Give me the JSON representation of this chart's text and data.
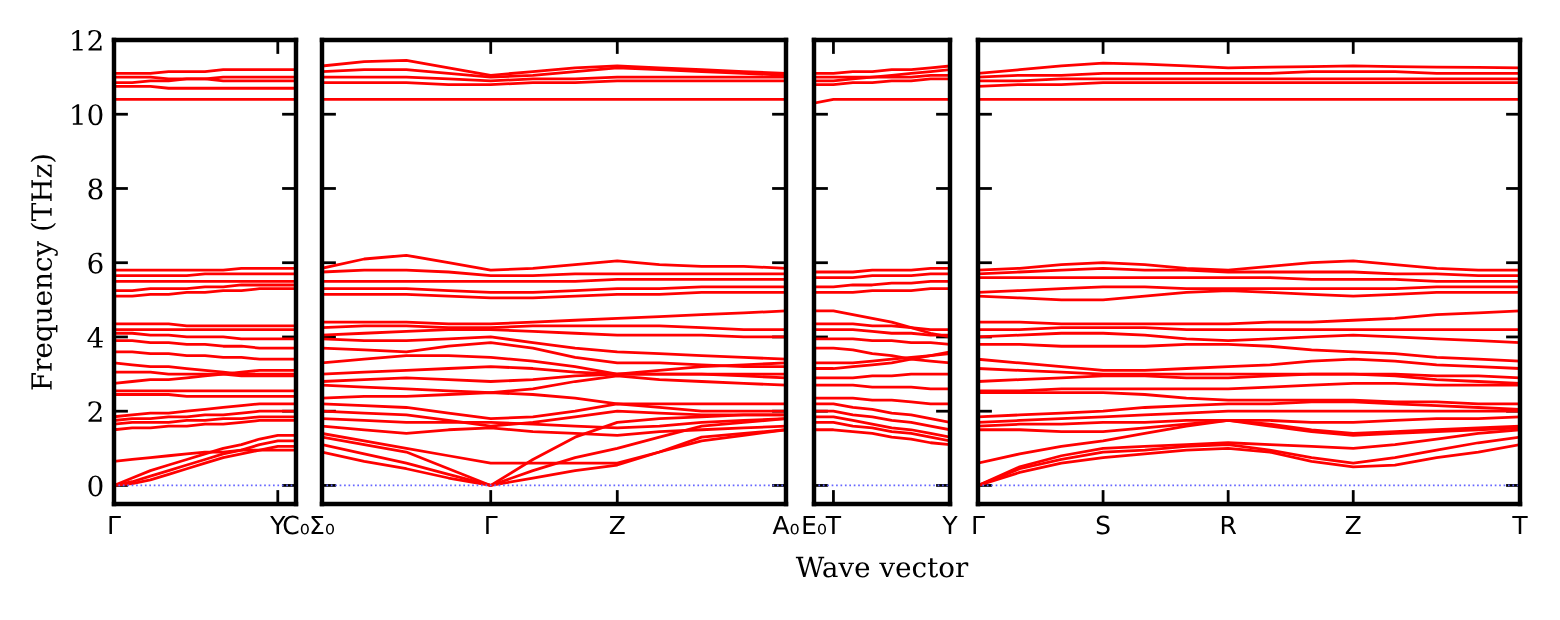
{
  "chart_data": [
    {
      "type": "line",
      "ylabel": "Frequency (THz)",
      "categories": [
        "Γ",
        null,
        null,
        null,
        null,
        null,
        null,
        null,
        null,
        "Y",
        "C₀"
      ],
      "ylim": [
        -0.5,
        12
      ],
      "yticks": [
        0,
        2,
        4,
        6,
        8,
        10,
        12
      ],
      "ref_lines": [
        {
          "axis": "y",
          "value": 0,
          "color": "#6666ff",
          "line_style": "dotted"
        }
      ],
      "series": [
        {
          "color": "#ff0000",
          "values": [
            10.4,
            10.4,
            10.4,
            10.4,
            10.4,
            10.4,
            10.4,
            10.4,
            10.4,
            10.4,
            10.4
          ]
        },
        {
          "color": "#ff0000",
          "values": [
            10.75,
            10.75,
            10.75,
            10.7,
            10.7,
            10.7,
            10.7,
            10.7,
            10.7,
            10.7,
            10.7
          ]
        },
        {
          "color": "#ff0000",
          "values": [
            10.85,
            10.85,
            10.9,
            10.9,
            10.95,
            10.95,
            11.0,
            11.0,
            11.0,
            11.0,
            11.0
          ]
        },
        {
          "color": "#ff0000",
          "values": [
            11.0,
            11.0,
            11.0,
            10.95,
            10.95,
            10.95,
            10.9,
            10.9,
            10.9,
            10.9,
            10.9
          ]
        },
        {
          "color": "#ff0000",
          "values": [
            11.1,
            11.1,
            11.1,
            11.15,
            11.15,
            11.15,
            11.2,
            11.2,
            11.2,
            11.2,
            11.2
          ]
        },
        {
          "color": "#ff0000",
          "values": [
            5.1,
            5.1,
            5.15,
            5.15,
            5.2,
            5.2,
            5.25,
            5.25,
            5.3,
            5.3,
            5.3
          ]
        },
        {
          "color": "#ff0000",
          "values": [
            5.25,
            5.25,
            5.3,
            5.3,
            5.3,
            5.35,
            5.35,
            5.4,
            5.4,
            5.4,
            5.4
          ]
        },
        {
          "color": "#ff0000",
          "values": [
            5.5,
            5.5,
            5.5,
            5.5,
            5.5,
            5.5,
            5.5,
            5.5,
            5.5,
            5.5,
            5.5
          ]
        },
        {
          "color": "#ff0000",
          "values": [
            5.65,
            5.65,
            5.65,
            5.65,
            5.65,
            5.7,
            5.7,
            5.7,
            5.7,
            5.7,
            5.7
          ]
        },
        {
          "color": "#ff0000",
          "values": [
            5.8,
            5.8,
            5.8,
            5.8,
            5.8,
            5.8,
            5.8,
            5.85,
            5.85,
            5.85,
            5.85
          ]
        },
        {
          "color": "#ff0000",
          "values": [
            4.35,
            4.35,
            4.35,
            4.35,
            4.3,
            4.3,
            4.3,
            4.3,
            4.3,
            4.3,
            4.3
          ]
        },
        {
          "color": "#ff0000",
          "values": [
            4.2,
            4.2,
            4.2,
            4.2,
            4.2,
            4.2,
            4.2,
            4.2,
            4.2,
            4.2,
            4.2
          ]
        },
        {
          "color": "#ff0000",
          "values": [
            4.1,
            4.1,
            4.05,
            4.05,
            4.0,
            4.0,
            4.0,
            3.95,
            3.95,
            3.95,
            3.95
          ]
        },
        {
          "color": "#ff0000",
          "values": [
            3.9,
            3.9,
            3.85,
            3.85,
            3.8,
            3.8,
            3.75,
            3.75,
            3.7,
            3.7,
            3.7
          ]
        },
        {
          "color": "#ff0000",
          "values": [
            3.6,
            3.6,
            3.55,
            3.55,
            3.5,
            3.5,
            3.45,
            3.45,
            3.4,
            3.4,
            3.4
          ]
        },
        {
          "color": "#ff0000",
          "values": [
            3.3,
            3.25,
            3.2,
            3.2,
            3.15,
            3.1,
            3.05,
            3.0,
            3.0,
            3.0,
            3.0
          ]
        },
        {
          "color": "#ff0000",
          "values": [
            3.05,
            3.05,
            3.05,
            3.0,
            3.0,
            3.0,
            3.0,
            2.95,
            2.95,
            2.95,
            2.95
          ]
        },
        {
          "color": "#ff0000",
          "values": [
            2.75,
            2.8,
            2.85,
            2.85,
            2.9,
            2.95,
            3.0,
            3.05,
            3.1,
            3.1,
            3.1
          ]
        },
        {
          "color": "#ff0000",
          "values": [
            2.55,
            2.55,
            2.55,
            2.55,
            2.55,
            2.55,
            2.55,
            2.55,
            2.55,
            2.55,
            2.55
          ]
        },
        {
          "color": "#ff0000",
          "values": [
            2.45,
            2.45,
            2.45,
            2.45,
            2.4,
            2.4,
            2.4,
            2.4,
            2.4,
            2.4,
            2.4
          ]
        },
        {
          "color": "#ff0000",
          "values": [
            1.85,
            1.9,
            1.95,
            1.95,
            2.0,
            2.05,
            2.1,
            2.15,
            2.2,
            2.2,
            2.2
          ]
        },
        {
          "color": "#ff0000",
          "values": [
            1.75,
            1.8,
            1.8,
            1.85,
            1.85,
            1.9,
            1.9,
            1.95,
            2.0,
            2.0,
            2.0
          ]
        },
        {
          "color": "#ff0000",
          "values": [
            1.65,
            1.7,
            1.7,
            1.7,
            1.75,
            1.75,
            1.8,
            1.8,
            1.85,
            1.85,
            1.85
          ]
        },
        {
          "color": "#ff0000",
          "values": [
            1.5,
            1.55,
            1.55,
            1.6,
            1.6,
            1.65,
            1.65,
            1.7,
            1.75,
            1.75,
            1.75
          ]
        },
        {
          "color": "#ff0000",
          "values": [
            0.65,
            0.7,
            0.75,
            0.8,
            0.85,
            0.9,
            0.9,
            0.95,
            0.95,
            0.95,
            0.95
          ]
        },
        {
          "color": "#ff0000",
          "values": [
            0,
            0.05,
            0.15,
            0.3,
            0.45,
            0.6,
            0.75,
            0.85,
            0.95,
            1.05,
            1.05
          ]
        },
        {
          "color": "#ff0000",
          "values": [
            0,
            0.1,
            0.25,
            0.4,
            0.55,
            0.7,
            0.85,
            0.95,
            1.1,
            1.2,
            1.2
          ]
        },
        {
          "color": "#ff0000",
          "values": [
            0,
            0.2,
            0.4,
            0.55,
            0.7,
            0.85,
            1.0,
            1.1,
            1.25,
            1.35,
            1.35
          ]
        }
      ]
    },
    {
      "type": "line",
      "categories": [
        "Σ₀",
        null,
        null,
        null,
        "Γ",
        null,
        null,
        "Z",
        null,
        null,
        null,
        "A₀"
      ],
      "ylim": [
        -0.5,
        12
      ],
      "yticks": [
        0,
        2,
        4,
        6,
        8,
        10,
        12
      ],
      "tick_labels": "x",
      "ref_lines": [
        {
          "axis": "y",
          "value": 0,
          "color": "#6666ff",
          "line_style": "dotted"
        }
      ],
      "series": [
        {
          "color": "#ff0000",
          "values": [
            11.3,
            11.42,
            11.45,
            11.25,
            11.05,
            11.15,
            11.25,
            11.3,
            11.25,
            11.2,
            11.15,
            11.1
          ]
        },
        {
          "color": "#ff0000",
          "values": [
            11.15,
            11.2,
            11.2,
            11.1,
            11.0,
            11.05,
            11.15,
            11.25,
            11.2,
            11.15,
            11.1,
            11.05
          ]
        },
        {
          "color": "#ff0000",
          "values": [
            11.0,
            11.0,
            11.0,
            10.95,
            10.9,
            10.95,
            10.95,
            11.0,
            11.0,
            11.0,
            11.0,
            11.0
          ]
        },
        {
          "color": "#ff0000",
          "values": [
            10.85,
            10.85,
            10.85,
            10.8,
            10.8,
            10.85,
            10.85,
            10.9,
            10.9,
            10.9,
            10.9,
            10.9
          ]
        },
        {
          "color": "#ff0000",
          "values": [
            10.4,
            10.4,
            10.4,
            10.4,
            10.4,
            10.4,
            10.4,
            10.4,
            10.4,
            10.4,
            10.4,
            10.4
          ]
        },
        {
          "color": "#ff0000",
          "values": [
            5.85,
            6.1,
            6.2,
            6.0,
            5.8,
            5.85,
            5.95,
            6.05,
            5.95,
            5.9,
            5.9,
            5.85
          ]
        },
        {
          "color": "#ff0000",
          "values": [
            5.75,
            5.8,
            5.8,
            5.75,
            5.65,
            5.65,
            5.7,
            5.7,
            5.7,
            5.7,
            5.7,
            5.7
          ]
        },
        {
          "color": "#ff0000",
          "values": [
            5.5,
            5.5,
            5.5,
            5.5,
            5.5,
            5.5,
            5.5,
            5.55,
            5.55,
            5.55,
            5.55,
            5.55
          ]
        },
        {
          "color": "#ff0000",
          "values": [
            5.3,
            5.3,
            5.3,
            5.25,
            5.2,
            5.2,
            5.25,
            5.3,
            5.3,
            5.35,
            5.35,
            5.35
          ]
        },
        {
          "color": "#ff0000",
          "values": [
            5.15,
            5.15,
            5.15,
            5.1,
            5.05,
            5.05,
            5.1,
            5.15,
            5.15,
            5.2,
            5.2,
            5.2
          ]
        },
        {
          "color": "#ff0000",
          "values": [
            4.4,
            4.4,
            4.4,
            4.35,
            4.35,
            4.4,
            4.45,
            4.5,
            4.55,
            4.6,
            4.65,
            4.7
          ]
        },
        {
          "color": "#ff0000",
          "values": [
            4.25,
            4.3,
            4.3,
            4.25,
            4.25,
            4.3,
            4.3,
            4.3,
            4.3,
            4.25,
            4.2,
            4.2
          ]
        },
        {
          "color": "#ff0000",
          "values": [
            4.05,
            4.1,
            4.15,
            4.2,
            4.2,
            4.15,
            4.1,
            4.05,
            4.05,
            4.05,
            4.0,
            4.0
          ]
        },
        {
          "color": "#ff0000",
          "values": [
            3.95,
            3.9,
            3.9,
            3.95,
            4.0,
            3.85,
            3.7,
            3.6,
            3.55,
            3.5,
            3.45,
            3.4
          ]
        },
        {
          "color": "#ff0000",
          "values": [
            3.7,
            3.65,
            3.6,
            3.75,
            3.85,
            3.7,
            3.45,
            3.3,
            3.3,
            3.25,
            3.2,
            3.2
          ]
        },
        {
          "color": "#ff0000",
          "values": [
            3.3,
            3.4,
            3.5,
            3.5,
            3.45,
            3.35,
            3.2,
            3.0,
            3.0,
            3.0,
            2.95,
            2.9
          ]
        },
        {
          "color": "#ff0000",
          "values": [
            3.0,
            3.05,
            3.1,
            3.15,
            3.2,
            3.15,
            3.05,
            3.0,
            3.0,
            3.0,
            3.0,
            3.0
          ]
        },
        {
          "color": "#ff0000",
          "values": [
            2.8,
            2.85,
            2.9,
            2.85,
            2.8,
            2.85,
            2.95,
            3.0,
            3.1,
            3.2,
            3.25,
            3.3
          ]
        },
        {
          "color": "#ff0000",
          "values": [
            2.7,
            2.65,
            2.6,
            2.55,
            2.5,
            2.6,
            2.8,
            2.95,
            2.85,
            2.8,
            2.75,
            2.7
          ]
        },
        {
          "color": "#ff0000",
          "values": [
            2.35,
            2.4,
            2.4,
            2.45,
            2.5,
            2.45,
            2.35,
            2.2,
            2.2,
            2.2,
            2.2,
            2.2
          ]
        },
        {
          "color": "#ff0000",
          "values": [
            2.2,
            2.15,
            2.1,
            1.95,
            1.8,
            1.85,
            2.0,
            2.2,
            2.1,
            2.0,
            2.0,
            2.0
          ]
        },
        {
          "color": "#ff0000",
          "values": [
            2.0,
            1.95,
            1.9,
            1.75,
            1.6,
            1.7,
            1.85,
            2.0,
            1.95,
            1.9,
            1.9,
            1.9
          ]
        },
        {
          "color": "#ff0000",
          "values": [
            1.8,
            1.75,
            1.7,
            1.7,
            1.7,
            1.65,
            1.6,
            1.55,
            1.6,
            1.7,
            1.75,
            1.8
          ]
        },
        {
          "color": "#ff0000",
          "values": [
            1.6,
            1.5,
            1.4,
            1.5,
            1.55,
            1.45,
            1.4,
            1.35,
            1.45,
            1.5,
            1.55,
            1.6
          ]
        },
        {
          "color": "#ff0000",
          "values": [
            1.4,
            1.2,
            1.0,
            0.8,
            0.6,
            0.6,
            0.6,
            0.6,
            0.9,
            1.3,
            1.4,
            1.5
          ]
        },
        {
          "color": "#ff0000",
          "values": [
            1.3,
            1.1,
            0.9,
            0.45,
            0,
            0.7,
            1.3,
            1.7,
            1.8,
            1.85,
            1.9,
            1.9
          ]
        },
        {
          "color": "#ff0000",
          "values": [
            1.1,
            0.85,
            0.6,
            0.3,
            0,
            0.4,
            0.75,
            1.0,
            1.3,
            1.6,
            1.7,
            1.8
          ]
        },
        {
          "color": "#ff0000",
          "values": [
            0.9,
            0.65,
            0.45,
            0.2,
            0,
            0.2,
            0.4,
            0.55,
            0.9,
            1.2,
            1.35,
            1.5
          ]
        }
      ]
    },
    {
      "type": "line",
      "xlabel": "Wave vector",
      "categories": [
        "E₀",
        "T",
        null,
        null,
        null,
        null,
        null,
        "Y"
      ],
      "ylim": [
        -0.5,
        12
      ],
      "yticks": [
        0,
        2,
        4,
        6,
        8,
        10,
        12
      ],
      "tick_labels": "x",
      "ref_lines": [
        {
          "axis": "y",
          "value": 0,
          "color": "#6666ff",
          "line_style": "dotted"
        }
      ],
      "series": [
        {
          "color": "#ff0000",
          "values": [
            10.3,
            10.4,
            10.4,
            10.4,
            10.4,
            10.4,
            10.4,
            10.4
          ]
        },
        {
          "color": "#ff0000",
          "values": [
            10.9,
            10.9,
            10.95,
            11.0,
            11.05,
            11.1,
            11.15,
            11.2
          ]
        },
        {
          "color": "#ff0000",
          "values": [
            11.1,
            11.1,
            11.15,
            11.15,
            11.2,
            11.2,
            11.25,
            11.3
          ]
        },
        {
          "color": "#ff0000",
          "values": [
            11.0,
            11.0,
            11.0,
            11.0,
            11.0,
            11.0,
            11.05,
            11.05
          ]
        },
        {
          "color": "#ff0000",
          "values": [
            10.8,
            10.8,
            10.85,
            10.85,
            10.9,
            10.9,
            10.95,
            10.95
          ]
        },
        {
          "color": "#ff0000",
          "values": [
            5.2,
            5.2,
            5.2,
            5.25,
            5.25,
            5.25,
            5.3,
            5.3
          ]
        },
        {
          "color": "#ff0000",
          "values": [
            5.35,
            5.35,
            5.4,
            5.4,
            5.45,
            5.45,
            5.5,
            5.5
          ]
        },
        {
          "color": "#ff0000",
          "values": [
            5.6,
            5.6,
            5.6,
            5.65,
            5.65,
            5.65,
            5.7,
            5.7
          ]
        },
        {
          "color": "#ff0000",
          "values": [
            5.75,
            5.75,
            5.75,
            5.8,
            5.8,
            5.8,
            5.85,
            5.85
          ]
        },
        {
          "color": "#ff0000",
          "values": [
            4.7,
            4.7,
            4.6,
            4.5,
            4.4,
            4.25,
            4.1,
            4.0
          ]
        },
        {
          "color": "#ff0000",
          "values": [
            4.35,
            4.35,
            4.35,
            4.3,
            4.3,
            4.25,
            4.2,
            4.2
          ]
        },
        {
          "color": "#ff0000",
          "values": [
            4.2,
            4.2,
            4.2,
            4.15,
            4.1,
            4.1,
            4.05,
            4.05
          ]
        },
        {
          "color": "#ff0000",
          "values": [
            3.95,
            3.95,
            3.95,
            3.9,
            3.9,
            3.85,
            3.85,
            3.8
          ]
        },
        {
          "color": "#ff0000",
          "values": [
            3.7,
            3.7,
            3.65,
            3.55,
            3.5,
            3.4,
            3.35,
            3.3
          ]
        },
        {
          "color": "#ff0000",
          "values": [
            3.3,
            3.3,
            3.3,
            3.35,
            3.4,
            3.45,
            3.5,
            3.55
          ]
        },
        {
          "color": "#ff0000",
          "values": [
            3.15,
            3.15,
            3.2,
            3.25,
            3.3,
            3.4,
            3.5,
            3.6
          ]
        },
        {
          "color": "#ff0000",
          "values": [
            2.9,
            2.9,
            2.9,
            2.95,
            2.95,
            3.0,
            3.0,
            3.0
          ]
        },
        {
          "color": "#ff0000",
          "values": [
            2.7,
            2.7,
            2.7,
            2.65,
            2.65,
            2.65,
            2.6,
            2.6
          ]
        },
        {
          "color": "#ff0000",
          "values": [
            2.35,
            2.35,
            2.35,
            2.3,
            2.3,
            2.25,
            2.2,
            2.2
          ]
        },
        {
          "color": "#ff0000",
          "values": [
            2.2,
            2.2,
            2.1,
            2.05,
            1.95,
            1.9,
            1.8,
            1.7
          ]
        },
        {
          "color": "#ff0000",
          "values": [
            2.0,
            2.0,
            1.9,
            1.85,
            1.75,
            1.7,
            1.6,
            1.5
          ]
        },
        {
          "color": "#ff0000",
          "values": [
            1.85,
            1.85,
            1.75,
            1.65,
            1.55,
            1.5,
            1.4,
            1.3
          ]
        },
        {
          "color": "#ff0000",
          "values": [
            1.7,
            1.7,
            1.6,
            1.55,
            1.45,
            1.4,
            1.3,
            1.2
          ]
        },
        {
          "color": "#ff0000",
          "values": [
            1.5,
            1.5,
            1.45,
            1.4,
            1.3,
            1.25,
            1.15,
            1.1
          ]
        }
      ]
    },
    {
      "type": "line",
      "categories": [
        "Γ",
        null,
        null,
        "S",
        null,
        null,
        "R",
        null,
        null,
        "Z",
        null,
        null,
        null,
        "T"
      ],
      "ylim": [
        -0.5,
        12
      ],
      "yticks": [
        0,
        2,
        4,
        6,
        8,
        10,
        12
      ],
      "tick_labels": "x",
      "ref_lines": [
        {
          "axis": "y",
          "value": 0,
          "color": "#6666ff",
          "line_style": "dotted"
        }
      ],
      "series": [
        {
          "color": "#ff0000",
          "values": [
            11.1,
            11.2,
            11.3,
            11.38,
            11.35,
            11.3,
            11.25,
            11.27,
            11.28,
            11.3,
            11.28,
            11.27,
            11.26,
            11.25
          ]
        },
        {
          "color": "#ff0000",
          "values": [
            11.0,
            11.05,
            11.05,
            11.1,
            11.1,
            11.1,
            11.1,
            11.1,
            11.15,
            11.15,
            11.15,
            11.1,
            11.1,
            11.1
          ]
        },
        {
          "color": "#ff0000",
          "values": [
            10.9,
            10.9,
            10.95,
            10.95,
            10.95,
            10.95,
            10.95,
            10.95,
            10.95,
            10.95,
            10.95,
            10.95,
            10.95,
            10.95
          ]
        },
        {
          "color": "#ff0000",
          "values": [
            10.75,
            10.8,
            10.8,
            10.85,
            10.85,
            10.85,
            10.85,
            10.85,
            10.85,
            10.85,
            10.85,
            10.85,
            10.85,
            10.85
          ]
        },
        {
          "color": "#ff0000",
          "values": [
            10.4,
            10.4,
            10.4,
            10.4,
            10.4,
            10.4,
            10.4,
            10.4,
            10.4,
            10.4,
            10.4,
            10.4,
            10.4,
            10.4
          ]
        },
        {
          "color": "#ff0000",
          "values": [
            5.8,
            5.85,
            5.95,
            6.0,
            5.95,
            5.85,
            5.8,
            5.9,
            6.0,
            6.05,
            5.95,
            5.85,
            5.8,
            5.8
          ]
        },
        {
          "color": "#ff0000",
          "values": [
            5.7,
            5.75,
            5.8,
            5.85,
            5.8,
            5.8,
            5.75,
            5.75,
            5.75,
            5.75,
            5.7,
            5.7,
            5.65,
            5.65
          ]
        },
        {
          "color": "#ff0000",
          "values": [
            5.6,
            5.6,
            5.6,
            5.6,
            5.6,
            5.6,
            5.6,
            5.6,
            5.55,
            5.55,
            5.55,
            5.5,
            5.5,
            5.5
          ]
        },
        {
          "color": "#ff0000",
          "values": [
            5.2,
            5.25,
            5.3,
            5.35,
            5.35,
            5.3,
            5.3,
            5.3,
            5.3,
            5.3,
            5.3,
            5.35,
            5.35,
            5.35
          ]
        },
        {
          "color": "#ff0000",
          "values": [
            5.1,
            5.05,
            5.0,
            5.0,
            5.1,
            5.2,
            5.25,
            5.2,
            5.15,
            5.1,
            5.15,
            5.2,
            5.2,
            5.2
          ]
        },
        {
          "color": "#ff0000",
          "values": [
            4.4,
            4.4,
            4.35,
            4.35,
            4.35,
            4.35,
            4.35,
            4.4,
            4.4,
            4.45,
            4.5,
            4.6,
            4.65,
            4.7
          ]
        },
        {
          "color": "#ff0000",
          "values": [
            4.2,
            4.2,
            4.25,
            4.25,
            4.25,
            4.2,
            4.2,
            4.2,
            4.2,
            4.2,
            4.2,
            4.2,
            4.2,
            4.2
          ]
        },
        {
          "color": "#ff0000",
          "values": [
            4.0,
            4.05,
            4.1,
            4.1,
            4.05,
            3.95,
            3.9,
            3.95,
            4.0,
            4.05,
            4.0,
            3.95,
            3.9,
            3.85
          ]
        },
        {
          "color": "#ff0000",
          "values": [
            3.8,
            3.8,
            3.75,
            3.75,
            3.75,
            3.8,
            3.8,
            3.75,
            3.65,
            3.6,
            3.55,
            3.45,
            3.4,
            3.35
          ]
        },
        {
          "color": "#ff0000",
          "values": [
            3.4,
            3.3,
            3.2,
            3.1,
            3.1,
            3.15,
            3.2,
            3.25,
            3.35,
            3.4,
            3.35,
            3.25,
            3.2,
            3.15
          ]
        },
        {
          "color": "#ff0000",
          "values": [
            3.15,
            3.1,
            3.05,
            3.0,
            3.0,
            3.0,
            3.0,
            3.0,
            3.0,
            3.0,
            3.0,
            2.95,
            2.95,
            2.9
          ]
        },
        {
          "color": "#ff0000",
          "values": [
            2.8,
            2.85,
            2.9,
            2.95,
            2.95,
            2.9,
            2.9,
            2.95,
            3.0,
            3.0,
            2.95,
            2.85,
            2.8,
            2.75
          ]
        },
        {
          "color": "#ff0000",
          "values": [
            2.55,
            2.55,
            2.6,
            2.6,
            2.6,
            2.6,
            2.6,
            2.65,
            2.7,
            2.75,
            2.75,
            2.7,
            2.7,
            2.7
          ]
        },
        {
          "color": "#ff0000",
          "values": [
            2.5,
            2.5,
            2.5,
            2.5,
            2.45,
            2.35,
            2.3,
            2.3,
            2.3,
            2.3,
            2.25,
            2.25,
            2.2,
            2.2
          ]
        },
        {
          "color": "#ff0000",
          "values": [
            1.85,
            1.9,
            1.95,
            2.0,
            2.1,
            2.15,
            2.2,
            2.2,
            2.25,
            2.25,
            2.2,
            2.15,
            2.1,
            2.05
          ]
        },
        {
          "color": "#ff0000",
          "values": [
            1.7,
            1.75,
            1.8,
            1.85,
            1.9,
            1.95,
            2.0,
            2.0,
            2.0,
            2.0,
            2.0,
            2.0,
            2.0,
            2.0
          ]
        },
        {
          "color": "#ff0000",
          "values": [
            1.6,
            1.65,
            1.65,
            1.7,
            1.7,
            1.75,
            1.75,
            1.75,
            1.7,
            1.7,
            1.75,
            1.8,
            1.8,
            1.85
          ]
        },
        {
          "color": "#ff0000",
          "values": [
            1.5,
            1.5,
            1.45,
            1.45,
            1.55,
            1.65,
            1.75,
            1.6,
            1.45,
            1.35,
            1.4,
            1.45,
            1.5,
            1.55
          ]
        },
        {
          "color": "#ff0000",
          "values": [
            0.6,
            0.85,
            1.05,
            1.2,
            1.4,
            1.6,
            1.75,
            1.65,
            1.5,
            1.4,
            1.45,
            1.5,
            1.55,
            1.6
          ]
        },
        {
          "color": "#ff0000",
          "values": [
            0,
            0.5,
            0.8,
            1.0,
            1.05,
            1.1,
            1.15,
            1.1,
            1.05,
            1.0,
            1.1,
            1.25,
            1.4,
            1.5
          ]
        },
        {
          "color": "#ff0000",
          "values": [
            0,
            0.45,
            0.7,
            0.9,
            0.95,
            1.05,
            1.1,
            0.95,
            0.75,
            0.6,
            0.75,
            0.95,
            1.15,
            1.3
          ]
        },
        {
          "color": "#ff0000",
          "values": [
            0,
            0.35,
            0.6,
            0.75,
            0.85,
            0.95,
            1.0,
            0.9,
            0.65,
            0.5,
            0.55,
            0.75,
            0.9,
            1.1
          ]
        }
      ]
    }
  ]
}
